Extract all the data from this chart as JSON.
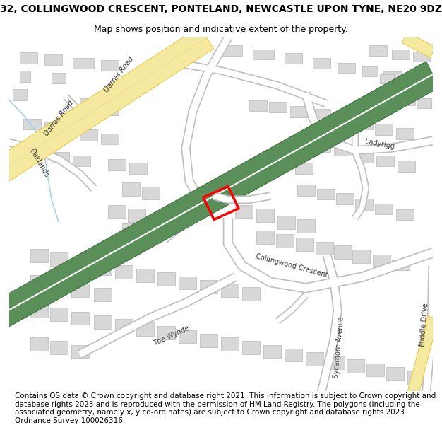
{
  "title_line1": "32, COLLINGWOOD CRESCENT, PONTELAND, NEWCASTLE UPON TYNE, NE20 9DZ",
  "title_line2": "Map shows position and indicative extent of the property.",
  "copyright_text": "Contains OS data © Crown copyright and database right 2021. This information is subject to Crown copyright and database rights 2023 and is reproduced with the permission of HM Land Registry. The polygons (including the associated geometry, namely x, y co-ordinates) are subject to Crown copyright and database rights 2023 Ordnance Survey 100026316.",
  "background_color": "#ffffff",
  "map_bg_color": "#f5f3ee",
  "road_color_main": "#ffffff",
  "road_outline_color": "#c0c0c0",
  "green_road_color": "#5a8f5a",
  "green_road_outline": "#3d6e3d",
  "green_road_center": "#ddeedd",
  "yellow_road_color": "#f5e9a0",
  "yellow_road_outline": "#e8c840",
  "yellow_road_center": "#f8f0c0",
  "building_color": "#d8d8d8",
  "building_outline": "#b8b8b8",
  "stream_color": "#a8d0e8",
  "plot_color": "#ff0000",
  "plot_linewidth": 2.5,
  "title_fontsize": 10,
  "subtitle_fontsize": 9,
  "copyright_fontsize": 7.5,
  "label_color": "#333333",
  "label_fontsize": 7
}
